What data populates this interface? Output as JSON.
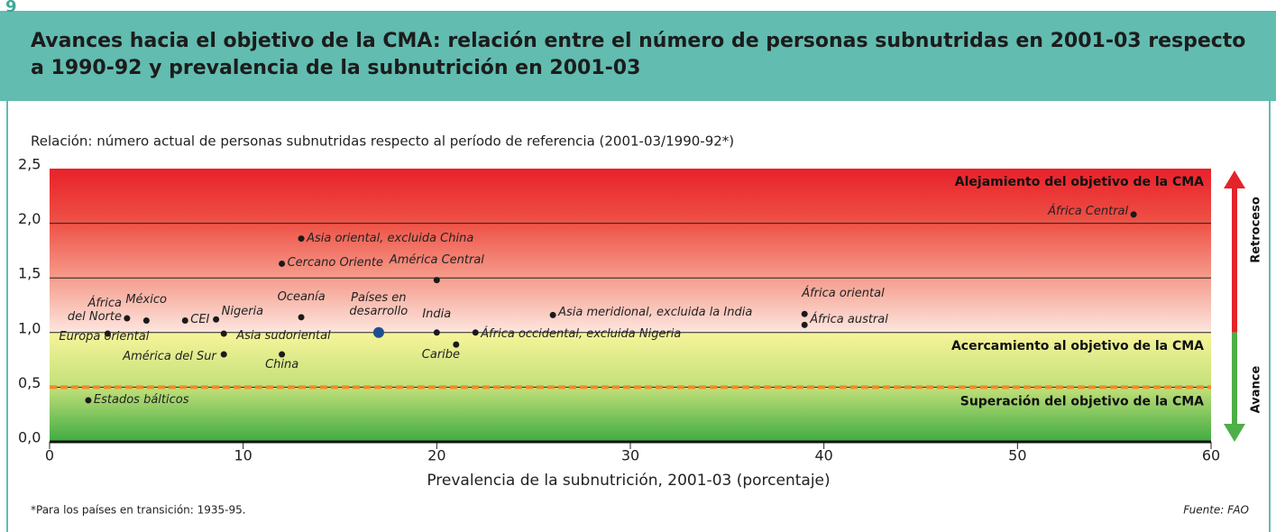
{
  "chart_data": {
    "type": "scatter",
    "number": "9",
    "title": "Avances hacia el objetivo de la CMA: relación entre el número de personas subnutridas en 2001-03 respecto a 1990-92 y prevalencia de la subnutrición en 2001-03",
    "y_axis_label": "Relación: número actual de personas subnutridas respecto al período de referencia (2001-03/1990-92*)",
    "x_axis_label": "Prevalencia de la subnutrición, 2001-03 (porcentaje)",
    "footnote": "*Para los países en transición: 1935-95.",
    "source": "Fuente: FAO",
    "xlim": [
      0,
      60
    ],
    "xticks": [
      0,
      10,
      20,
      30,
      40,
      50,
      60
    ],
    "ylim": [
      0,
      2.5
    ],
    "yticks": [
      {
        "value": 0,
        "label": "0,0"
      },
      {
        "value": 0.5,
        "label": "0,5"
      },
      {
        "value": 1,
        "label": "1,0"
      },
      {
        "value": 1.5,
        "label": "1,5"
      },
      {
        "value": 2,
        "label": "2,0"
      },
      {
        "value": 2.5,
        "label": "2,5"
      }
    ],
    "grid": true,
    "reference_line": 0.5,
    "reference_color": "#f08a2a",
    "zones": [
      "Alejamiento del objetivo de la CMA",
      "Acercamiento al objetivo de la CMA",
      "Superación del objetivo de la CMA"
    ],
    "arrows": [
      "Retroceso",
      "Avance"
    ],
    "color": "#1a1a1a",
    "highlight_color": "#1d4f91",
    "labels": [
      "África Central",
      "Asia oriental, excluida China",
      "Cercano Oriente",
      "América Central",
      "África\ndel Norte",
      "México",
      "CEI",
      "Nigeria",
      "Oceanía",
      "Asia sudoriental",
      "América del Sur",
      "China",
      "Europa oriental",
      "Estados bálticos",
      "Países en\ndesarrollo",
      "India",
      "Caribe",
      "África occidental, excluida Nigeria",
      "Asia meridional, excluida la India",
      "África oriental",
      "África austral"
    ],
    "x": [
      56,
      13,
      12,
      20,
      4,
      5,
      7,
      8.6,
      13,
      9,
      9,
      12,
      3,
      2,
      17,
      20,
      21,
      22,
      26,
      39,
      39
    ],
    "values": [
      2.08,
      1.86,
      1.63,
      1.48,
      1.13,
      1.11,
      1.11,
      1.12,
      1.14,
      0.99,
      0.8,
      0.8,
      0.99,
      0.38,
      1.0,
      1.0,
      0.89,
      1.0,
      1.16,
      1.17,
      1.07
    ],
    "highlight": [
      14
    ]
  }
}
